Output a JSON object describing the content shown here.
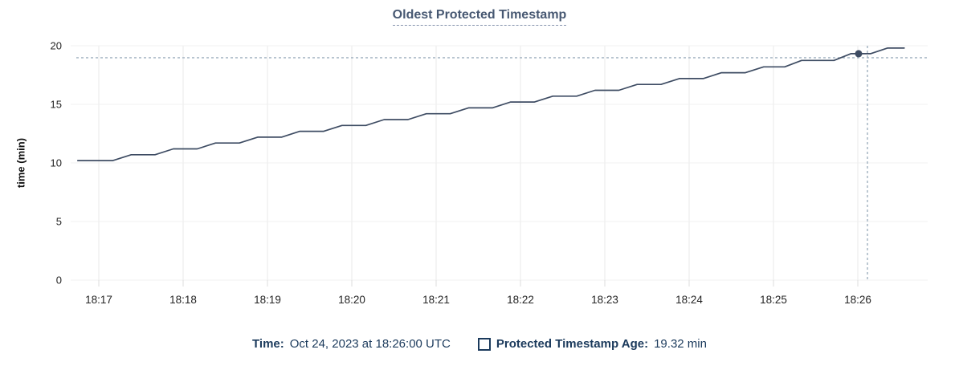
{
  "chart_data": {
    "type": "line",
    "title": "Oldest Protected Timestamp",
    "xlabel": "",
    "ylabel": "time (min)",
    "ylim": [
      0,
      20
    ],
    "y_ticks": [
      0,
      5,
      10,
      15,
      20
    ],
    "x_ticks": [
      "18:17",
      "18:18",
      "18:19",
      "18:20",
      "18:21",
      "18:22",
      "18:23",
      "18:24",
      "18:25",
      "18:26"
    ],
    "x_range": [
      "18:16:45",
      "18:26:33"
    ],
    "grid": true,
    "legend_position": "bottom",
    "series": [
      {
        "name": "Protected Timestamp Age",
        "unit": "min",
        "color": "#3e4c63",
        "points": [
          [
            "18:16:45",
            10.2
          ],
          [
            "18:17:10",
            10.2
          ],
          [
            "18:17:23",
            10.7
          ],
          [
            "18:17:40",
            10.7
          ],
          [
            "18:17:53",
            11.2
          ],
          [
            "18:18:10",
            11.2
          ],
          [
            "18:18:23",
            11.7
          ],
          [
            "18:18:40",
            11.7
          ],
          [
            "18:18:53",
            12.2
          ],
          [
            "18:19:10",
            12.2
          ],
          [
            "18:19:23",
            12.7
          ],
          [
            "18:19:40",
            12.7
          ],
          [
            "18:19:53",
            13.2
          ],
          [
            "18:20:10",
            13.2
          ],
          [
            "18:20:23",
            13.7
          ],
          [
            "18:20:40",
            13.7
          ],
          [
            "18:20:53",
            14.2
          ],
          [
            "18:21:10",
            14.2
          ],
          [
            "18:21:23",
            14.7
          ],
          [
            "18:21:40",
            14.7
          ],
          [
            "18:21:53",
            15.2
          ],
          [
            "18:22:10",
            15.2
          ],
          [
            "18:22:23",
            15.7
          ],
          [
            "18:22:40",
            15.7
          ],
          [
            "18:22:53",
            16.2
          ],
          [
            "18:23:10",
            16.2
          ],
          [
            "18:23:23",
            16.7
          ],
          [
            "18:23:40",
            16.7
          ],
          [
            "18:23:53",
            17.2
          ],
          [
            "18:24:10",
            17.2
          ],
          [
            "18:24:23",
            17.7
          ],
          [
            "18:24:40",
            17.7
          ],
          [
            "18:24:53",
            18.2
          ],
          [
            "18:25:08",
            18.2
          ],
          [
            "18:25:20",
            18.75
          ],
          [
            "18:25:43",
            18.75
          ],
          [
            "18:25:55",
            19.32
          ],
          [
            "18:26:09",
            19.32
          ],
          [
            "18:26:21",
            19.8
          ],
          [
            "18:26:33",
            19.8
          ]
        ]
      }
    ]
  },
  "cursor": {
    "time": "18:26:00",
    "value": 19.32
  },
  "legend": {
    "time_label": "Time:",
    "time_value": "Oct 24, 2023 at 18:26:00 UTC",
    "series_label": "Protected Timestamp Age:",
    "series_value": "19.32 min"
  },
  "colors": {
    "title": "#475872",
    "axis_text": "#242424",
    "grid": "#f0f0f0",
    "tick": "#dcdcdc",
    "line": "#3e4c63",
    "dot": "#3e4c63",
    "crosshair": "#9fb0bf",
    "legend_text": "#1b3a5c"
  }
}
